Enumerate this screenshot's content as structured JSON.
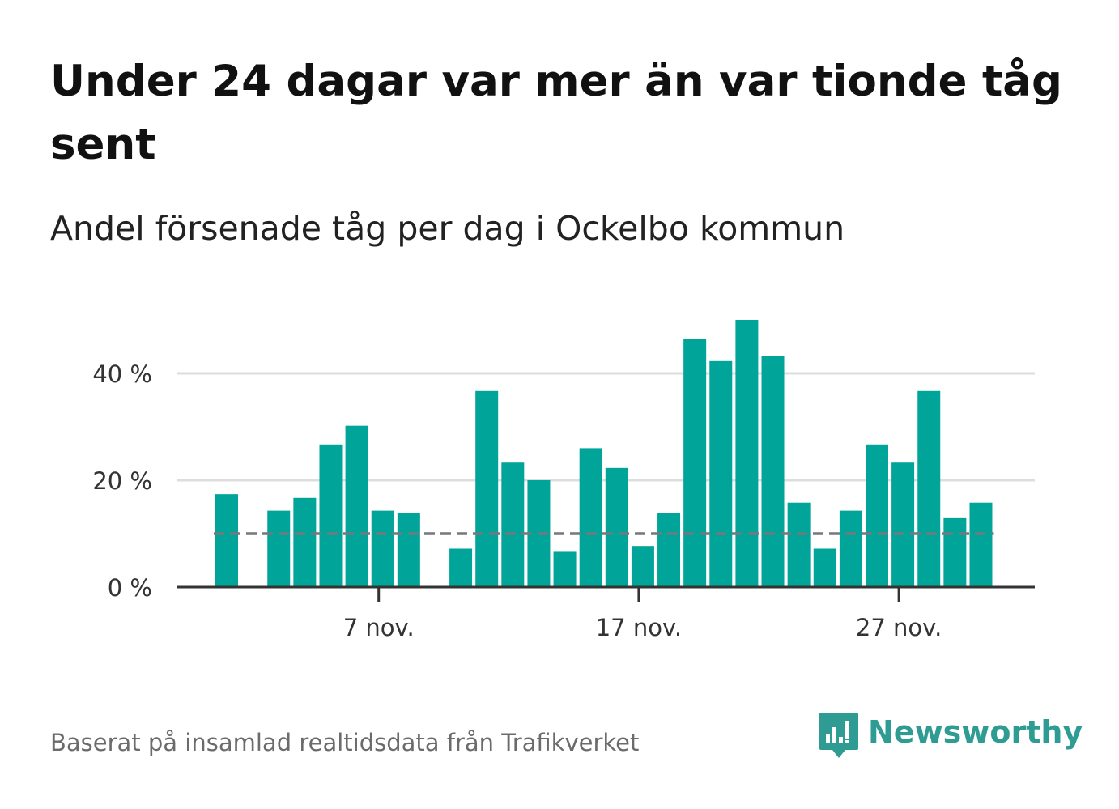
{
  "title": "Under 24 dagar var mer än var tionde tåg sent",
  "subtitle": "Andel försenade tåg per dag i Ockelbo kommun",
  "source": "Baserat på insamlad realtidsdata från Trafikverket",
  "brand": {
    "name": "Newsworthy",
    "color": "#2f9c93"
  },
  "colors": {
    "bar": "#00a499",
    "reference": "#77777c",
    "grid": "#dddddd",
    "axis": "#333333"
  },
  "chart_data": {
    "type": "bar",
    "title": "Andel försenade tåg per dag i Ockelbo kommun",
    "xlabel": "",
    "ylabel": "",
    "x": [
      "1 nov.",
      "2 nov.",
      "3 nov.",
      "4 nov.",
      "5 nov.",
      "6 nov.",
      "7 nov.",
      "8 nov.",
      "9 nov.",
      "10 nov.",
      "11 nov.",
      "12 nov.",
      "13 nov.",
      "14 nov.",
      "15 nov.",
      "16 nov.",
      "17 nov.",
      "18 nov.",
      "19 nov.",
      "20 nov.",
      "21 nov.",
      "22 nov.",
      "23 nov.",
      "24 nov.",
      "25 nov.",
      "26 nov.",
      "27 nov.",
      "28 nov.",
      "29 nov.",
      "30 nov."
    ],
    "values": [
      17.4,
      null,
      14.3,
      16.7,
      26.7,
      30.2,
      14.3,
      13.9,
      null,
      7.2,
      36.7,
      23.3,
      20.0,
      6.6,
      26.0,
      22.3,
      7.7,
      13.9,
      46.5,
      42.3,
      50.0,
      43.3,
      15.8,
      7.2,
      14.3,
      26.7,
      23.3,
      36.7,
      12.9,
      15.8
    ],
    "reference_line": {
      "value": 10,
      "style": "dashed"
    },
    "ylim": [
      0,
      52
    ],
    "yticks": [
      {
        "value": 0,
        "label": "0 %"
      },
      {
        "value": 20,
        "label": "20 %"
      },
      {
        "value": 40,
        "label": "40 %"
      }
    ],
    "xticks": [
      {
        "index": 6,
        "label": "7 nov."
      },
      {
        "index": 16,
        "label": "17 nov."
      },
      {
        "index": 26,
        "label": "27 nov."
      }
    ],
    "grid": true,
    "legend": "none"
  }
}
